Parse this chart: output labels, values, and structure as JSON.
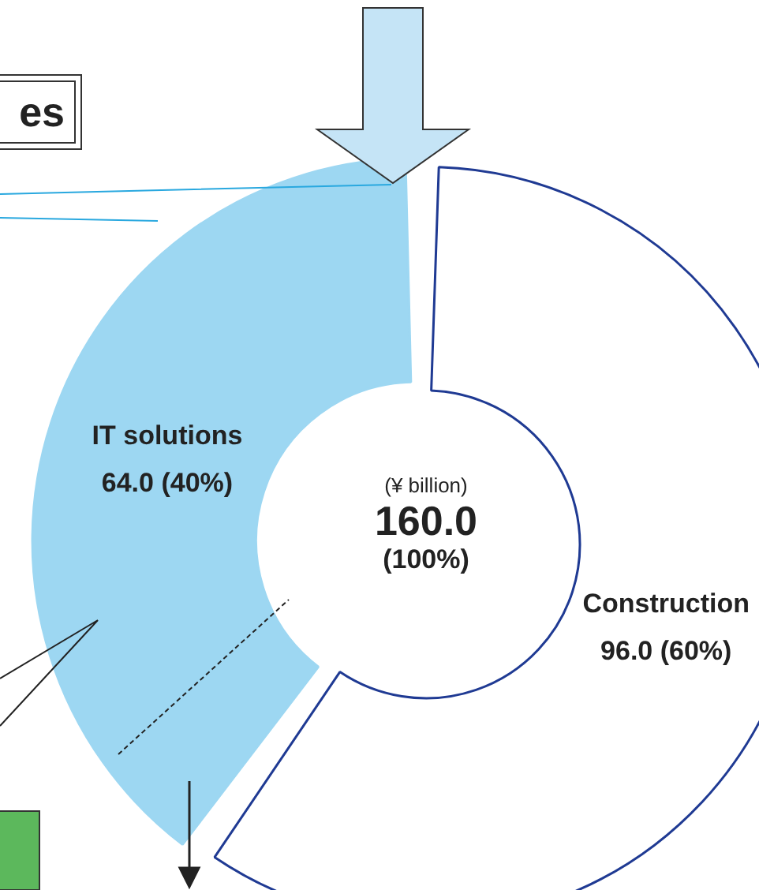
{
  "chart_data": {
    "type": "donut",
    "categories": [
      "Construction",
      "IT solutions"
    ],
    "values": [
      96.0,
      64.0
    ],
    "colors": [
      "#ffffff",
      "#9dd7f2"
    ],
    "value_labels": [
      "96.0 (60%)",
      "64.0 (40%)"
    ],
    "annotations": [
      "es",
      "(¥ billion)",
      "160.0",
      "(100%)"
    ]
  }
}
